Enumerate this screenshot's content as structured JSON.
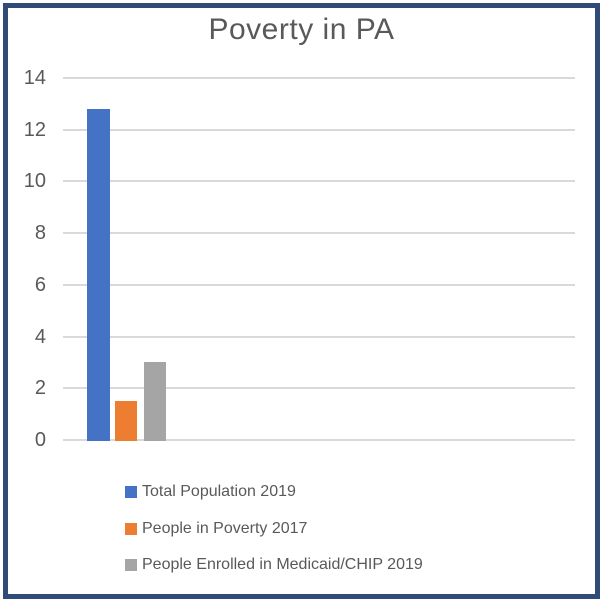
{
  "chart_data": {
    "type": "bar",
    "title": "Poverty in PA",
    "categories": [
      ""
    ],
    "series": [
      {
        "name": "Total Population 2019",
        "values": [
          12.8
        ],
        "color": "#4472C4"
      },
      {
        "name": "People in Poverty 2017",
        "values": [
          1.5
        ],
        "color": "#ED7D31"
      },
      {
        "name": "People Enrolled in Medicaid/CHIP 2019",
        "values": [
          3.0
        ],
        "color": "#A5A5A5"
      }
    ],
    "xlabel": "",
    "ylabel": "",
    "ylim": [
      0,
      14
    ],
    "yticks": [
      0,
      2,
      4,
      6,
      8,
      10,
      12,
      14
    ],
    "grid": true,
    "legend_position": "bottom"
  },
  "colors": {
    "frame_border": "#2F4C79",
    "gridline": "#D9D9D9",
    "text": "#595959",
    "background": "#FFFFFF"
  }
}
